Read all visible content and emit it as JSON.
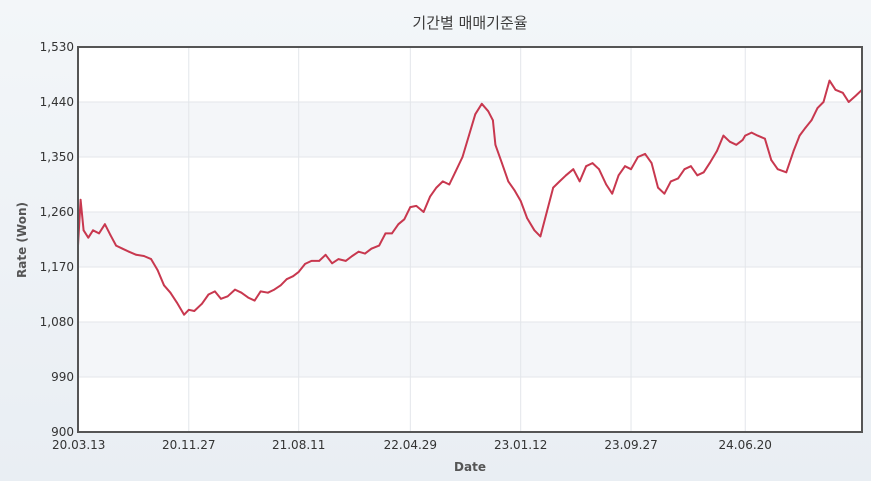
{
  "chart_data": {
    "type": "line",
    "title": "기간별 매매기준율",
    "xlabel": "Date",
    "ylabel": "Rate (Won)",
    "ylim": [
      900,
      1530
    ],
    "yticks": [
      900,
      990,
      1080,
      1170,
      1260,
      1350,
      1440,
      1530
    ],
    "ytick_labels": [
      "900",
      "990",
      "1,080",
      "1,170",
      "1,260",
      "1,350",
      "1,440",
      "1,530"
    ],
    "xlim": [
      "2020-03-13",
      "2025-03-20"
    ],
    "xticks": [
      "2020-03-13",
      "2020-11-27",
      "2021-08-11",
      "2022-04-29",
      "2023-01-12",
      "2023-09-27",
      "2024-06-20"
    ],
    "xtick_labels": [
      "20.03.13",
      "20.11.27",
      "21.08.11",
      "22.04.29",
      "23.01.12",
      "23.09.27",
      "24.06.20"
    ],
    "grid": true,
    "line_color": "#c8384f",
    "series": [
      {
        "x": [
          "2020-03-13",
          "2020-03-19",
          "2020-03-26",
          "2020-04-06",
          "2020-04-17",
          "2020-05-01",
          "2020-05-15",
          "2020-05-28",
          "2020-06-10",
          "2020-06-25",
          "2020-07-10",
          "2020-07-27",
          "2020-08-14",
          "2020-08-31",
          "2020-09-15",
          "2020-09-30",
          "2020-10-15",
          "2020-10-30",
          "2020-11-16",
          "2020-11-27",
          "2020-12-10",
          "2020-12-28",
          "2021-01-12",
          "2021-01-27",
          "2021-02-10",
          "2021-02-26",
          "2021-03-15",
          "2021-03-30",
          "2021-04-15",
          "2021-04-30",
          "2021-05-14",
          "2021-05-31",
          "2021-06-15",
          "2021-06-30",
          "2021-07-14",
          "2021-07-29",
          "2021-08-11",
          "2021-08-26",
          "2021-09-10",
          "2021-09-28",
          "2021-10-13",
          "2021-10-28",
          "2021-11-12",
          "2021-11-29",
          "2021-12-14",
          "2021-12-29",
          "2022-01-13",
          "2022-01-28",
          "2022-02-15",
          "2022-03-02",
          "2022-03-17",
          "2022-04-01",
          "2022-04-15",
          "2022-04-29",
          "2022-05-13",
          "2022-05-30",
          "2022-06-14",
          "2022-06-29",
          "2022-07-14",
          "2022-07-29",
          "2022-08-12",
          "2022-08-29",
          "2022-09-13",
          "2022-09-28",
          "2022-10-13",
          "2022-10-28",
          "2022-11-08",
          "2022-11-14",
          "2022-11-29",
          "2022-12-14",
          "2022-12-29",
          "2023-01-12",
          "2023-01-27",
          "2023-02-13",
          "2023-02-27",
          "2023-03-14",
          "2023-03-29",
          "2023-04-13",
          "2023-04-28",
          "2023-05-15",
          "2023-05-30",
          "2023-06-14",
          "2023-06-29",
          "2023-07-14",
          "2023-07-31",
          "2023-08-14",
          "2023-08-29",
          "2023-09-13",
          "2023-09-27",
          "2023-10-13",
          "2023-10-30",
          "2023-11-14",
          "2023-11-29",
          "2023-12-14",
          "2023-12-29",
          "2024-01-15",
          "2024-01-30",
          "2024-02-14",
          "2024-02-29",
          "2024-03-15",
          "2024-03-29",
          "2024-04-15",
          "2024-04-30",
          "2024-05-15",
          "2024-05-30",
          "2024-06-14",
          "2024-06-20",
          "2024-07-05",
          "2024-07-19",
          "2024-08-05",
          "2024-08-20",
          "2024-09-04",
          "2024-09-24",
          "2024-10-11",
          "2024-10-25",
          "2024-11-08",
          "2024-11-22",
          "2024-12-06",
          "2024-12-20",
          "2025-01-03",
          "2025-01-17",
          "2025-02-03",
          "2025-02-17",
          "2025-03-05",
          "2025-03-20"
        ],
        "y": [
          1205,
          1280,
          1230,
          1218,
          1230,
          1225,
          1240,
          1222,
          1205,
          1200,
          1195,
          1190,
          1188,
          1183,
          1165,
          1140,
          1128,
          1112,
          1092,
          1100,
          1098,
          1110,
          1125,
          1130,
          1118,
          1122,
          1133,
          1128,
          1120,
          1115,
          1130,
          1128,
          1133,
          1140,
          1150,
          1155,
          1162,
          1175,
          1180,
          1180,
          1190,
          1176,
          1183,
          1180,
          1188,
          1195,
          1192,
          1200,
          1205,
          1225,
          1225,
          1240,
          1248,
          1268,
          1270,
          1260,
          1285,
          1300,
          1310,
          1305,
          1325,
          1350,
          1385,
          1420,
          1437,
          1425,
          1410,
          1370,
          1340,
          1310,
          1295,
          1278,
          1250,
          1230,
          1220,
          1260,
          1300,
          1310,
          1320,
          1330,
          1310,
          1335,
          1340,
          1330,
          1305,
          1290,
          1320,
          1335,
          1330,
          1350,
          1355,
          1340,
          1300,
          1290,
          1310,
          1315,
          1330,
          1335,
          1320,
          1325,
          1340,
          1360,
          1385,
          1375,
          1370,
          1378,
          1385,
          1390,
          1385,
          1380,
          1345,
          1330,
          1325,
          1360,
          1385,
          1398,
          1410,
          1430,
          1440,
          1475,
          1460,
          1455,
          1440,
          1450,
          1460
        ]
      }
    ]
  }
}
